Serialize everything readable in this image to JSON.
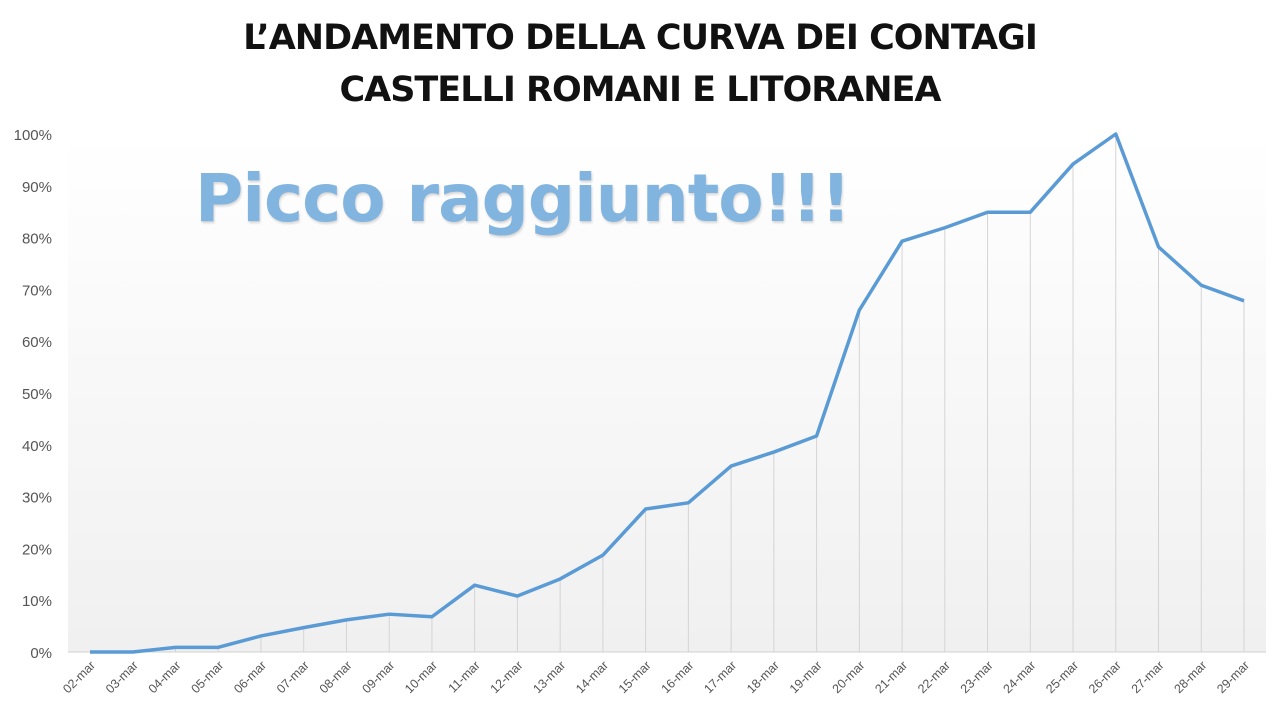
{
  "chart_data": {
    "type": "line",
    "title": [
      "L’ANDAMENTO DELLA CURVA DEI CONTAGI",
      "CASTELLI ROMANI E LITORANEA"
    ],
    "annotation": "Picco raggiunto!!!",
    "categories": [
      "02-mar",
      "03-mar",
      "04-mar",
      "05-mar",
      "06-mar",
      "07-mar",
      "08-mar",
      "09-mar",
      "10-mar",
      "11-mar",
      "12-mar",
      "13-mar",
      "14-mar",
      "15-mar",
      "16-mar",
      "17-mar",
      "18-mar",
      "19-mar",
      "20-mar",
      "21-mar",
      "22-mar",
      "23-mar",
      "24-mar",
      "25-mar",
      "26-mar",
      "27-mar",
      "28-mar",
      "29-mar"
    ],
    "values": [
      0,
      0,
      0.9,
      0.9,
      3.1,
      4.7,
      6.2,
      7.3,
      6.8,
      12.9,
      10.8,
      14.1,
      18.7,
      27.6,
      28.8,
      35.9,
      38.6,
      41.7,
      66,
      79.3,
      81.9,
      84.9,
      84.9,
      94.2,
      100,
      78.2,
      70.8,
      67.8
    ],
    "ylim": [
      0,
      100
    ],
    "yticks": [
      "0%",
      "10%",
      "20%",
      "30%",
      "40%",
      "50%",
      "60%",
      "70%",
      "80%",
      "90%",
      "100%"
    ],
    "grid": false,
    "drop_lines": true,
    "line_color": "#5b9bd5"
  }
}
